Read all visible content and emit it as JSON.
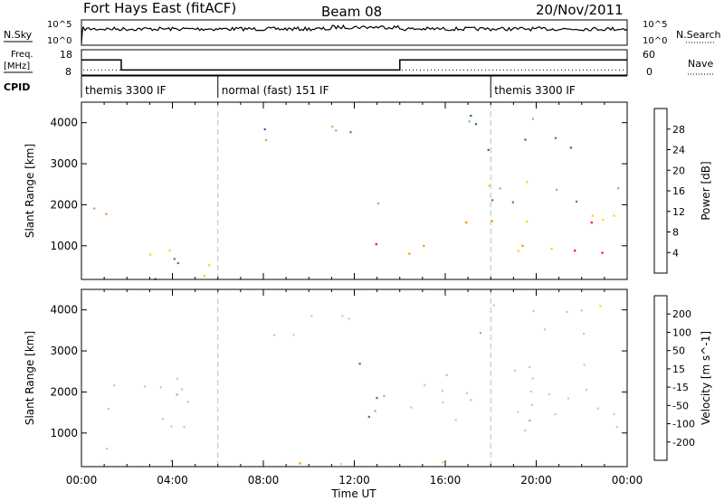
{
  "header": {
    "station": "Fort Hays East (fitACF)",
    "beam": "Beam 08",
    "date": "20/Nov/2011"
  },
  "panels": {
    "nsky": {
      "left_label": "N.Sky",
      "right_label": "N.Search",
      "left_ticks": [
        "10^5",
        "10^0"
      ],
      "right_ticks": [
        "10^5",
        "10^0"
      ]
    },
    "freq": {
      "left_label_1": "Freq.",
      "left_label_2": "[MHz]",
      "right_label": "Nave",
      "left_ticks": [
        "18",
        "8"
      ],
      "right_ticks": [
        "60",
        "0"
      ],
      "freq_steps": [
        [
          0,
          14
        ],
        [
          1.75,
          10
        ],
        [
          14.0,
          14
        ],
        [
          24,
          14
        ]
      ],
      "nave_value": 12
    },
    "cpid": {
      "label": "CPID",
      "segments": [
        {
          "start": 0,
          "text": "themis 3300 IF"
        },
        {
          "start": 6,
          "text": "normal (fast) 151 IF"
        },
        {
          "start": 18,
          "text": "themis 3300 IF"
        }
      ]
    }
  },
  "chart_data": [
    {
      "type": "heatmap",
      "title": "",
      "ylabel": "Slant Range [km]",
      "xlabel": "",
      "x_range_hours": [
        0,
        24
      ],
      "y_range_km": [
        180,
        4500
      ],
      "y_ticks": [
        1000,
        2000,
        3000,
        4000
      ],
      "colorbar_label": "Power [dB]",
      "colorbar_ticks": [
        4,
        8,
        12,
        16,
        20,
        24,
        28
      ],
      "colorbar_colors": [
        "#0000ff",
        "#3060a0",
        "#3c8a6a",
        "#86c84a",
        "#ffd000",
        "#ff9000",
        "#ff0000"
      ],
      "regions": [
        {
          "t0": 0.0,
          "t1": 1.2,
          "r0": 1500,
          "r1": 2600,
          "level": 4
        },
        {
          "t0": 0.8,
          "t1": 4.5,
          "r0": 600,
          "r1": 1500,
          "level": 3
        },
        {
          "t0": 1.5,
          "t1": 5.8,
          "r0": 200,
          "r1": 700,
          "level": 5
        },
        {
          "t0": 7.5,
          "t1": 12.0,
          "r0": 3300,
          "r1": 4200,
          "level": 2
        },
        {
          "t0": 12.0,
          "t1": 24.0,
          "r0": 800,
          "r1": 1800,
          "level": 5
        },
        {
          "t0": 12.5,
          "t1": 24.0,
          "r0": 2000,
          "r1": 2600,
          "level": 3
        },
        {
          "t0": 17.0,
          "t1": 24.0,
          "r0": 3300,
          "r1": 4200,
          "level": 2
        }
      ]
    },
    {
      "type": "heatmap",
      "title": "",
      "ylabel": "Slant Range [km]",
      "xlabel": "Time UT",
      "x_range_hours": [
        0,
        24
      ],
      "y_range_km": [
        180,
        4500
      ],
      "y_ticks": [
        1000,
        2000,
        3000,
        4000
      ],
      "x_ticks": [
        "00:00",
        "04:00",
        "08:00",
        "12:00",
        "16:00",
        "20:00",
        "00:00"
      ],
      "colorbar_label": "Velocity [m s^-1]",
      "colorbar_ticks": [
        "200",
        "100",
        "50",
        "15",
        "-15",
        "-50",
        "-100",
        "-200"
      ],
      "colorbar_colors": [
        "#1030c0",
        "#2a7a9a",
        "#2e8a4e",
        "#7ad04a",
        "#c8c8c0",
        "#ffcc50",
        "#ff9000",
        "#ff5000",
        "#ff0000"
      ],
      "regions": [
        {
          "t0": 0.0,
          "t1": 5.5,
          "r0": 600,
          "r1": 2400,
          "level": 4
        },
        {
          "t0": 1.5,
          "t1": 6.0,
          "r0": 180,
          "r1": 400,
          "level": 3
        },
        {
          "t0": 6.0,
          "t1": 20.0,
          "r0": 180,
          "r1": 350,
          "level": 6
        },
        {
          "t0": 7.5,
          "t1": 12.0,
          "r0": 3300,
          "r1": 4200,
          "level": 4
        },
        {
          "t0": 12.0,
          "t1": 14.0,
          "r0": 1200,
          "r1": 3000,
          "level": 3
        },
        {
          "t0": 14.0,
          "t1": 24.0,
          "r0": 800,
          "r1": 2000,
          "level": 4
        },
        {
          "t0": 12.5,
          "t1": 24.0,
          "r0": 2000,
          "r1": 2700,
          "level": 4
        },
        {
          "t0": 17.0,
          "t1": 24.0,
          "r0": 3300,
          "r1": 4200,
          "level": 4
        }
      ]
    }
  ]
}
